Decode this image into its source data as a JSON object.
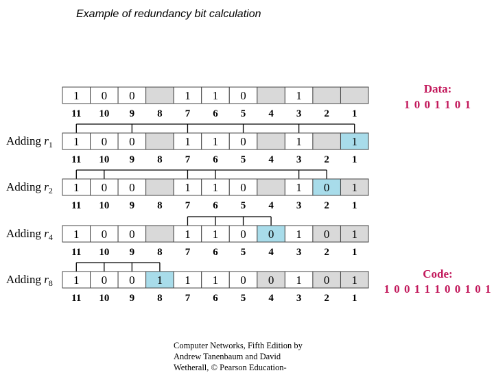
{
  "title": "Example of redundancy bit calculation",
  "positions": [
    "11",
    "10",
    "9",
    "8",
    "7",
    "6",
    "5",
    "4",
    "3",
    "2",
    "1"
  ],
  "rows": [
    {
      "label": "",
      "sub": "",
      "bits": [
        "1",
        "0",
        "0",
        "",
        "1",
        "1",
        "0",
        "",
        "1",
        "",
        ""
      ],
      "highlight": []
    },
    {
      "label": "Adding ",
      "var": "r",
      "sub": "1",
      "bits": [
        "1",
        "0",
        "0",
        "",
        "1",
        "1",
        "0",
        "",
        "1",
        "",
        "1"
      ],
      "highlight": [
        10
      ]
    },
    {
      "label": "Adding ",
      "var": "r",
      "sub": "2",
      "bits": [
        "1",
        "0",
        "0",
        "",
        "1",
        "1",
        "0",
        "",
        "1",
        "0",
        "1"
      ],
      "highlight": [
        9
      ]
    },
    {
      "label": "Adding ",
      "var": "r",
      "sub": "4",
      "bits": [
        "1",
        "0",
        "0",
        "",
        "1",
        "1",
        "0",
        "0",
        "1",
        "0",
        "1"
      ],
      "highlight": [
        7
      ]
    },
    {
      "label": "Adding ",
      "var": "r",
      "sub": "8",
      "bits": [
        "1",
        "0",
        "0",
        "1",
        "1",
        "1",
        "0",
        "0",
        "1",
        "0",
        "1"
      ],
      "highlight": [
        3
      ]
    }
  ],
  "data_box": {
    "title": "Data:",
    "bits": "1 0 0 1 1 0 1"
  },
  "code_box": {
    "title": "Code:",
    "bits": "1 0 0 1 1 1 0 0 1 0 1"
  },
  "colors": {
    "highlight": "#a8dcea",
    "redundant": "#d9d9d9",
    "data_cell": "#ffffff",
    "accent": "#c2185b"
  },
  "footer": {
    "line1": "Computer Networks, Fifth Edition by",
    "line2": "Andrew Tanenbaum and David",
    "line3": "Wetherall, © Pearson Education-"
  }
}
